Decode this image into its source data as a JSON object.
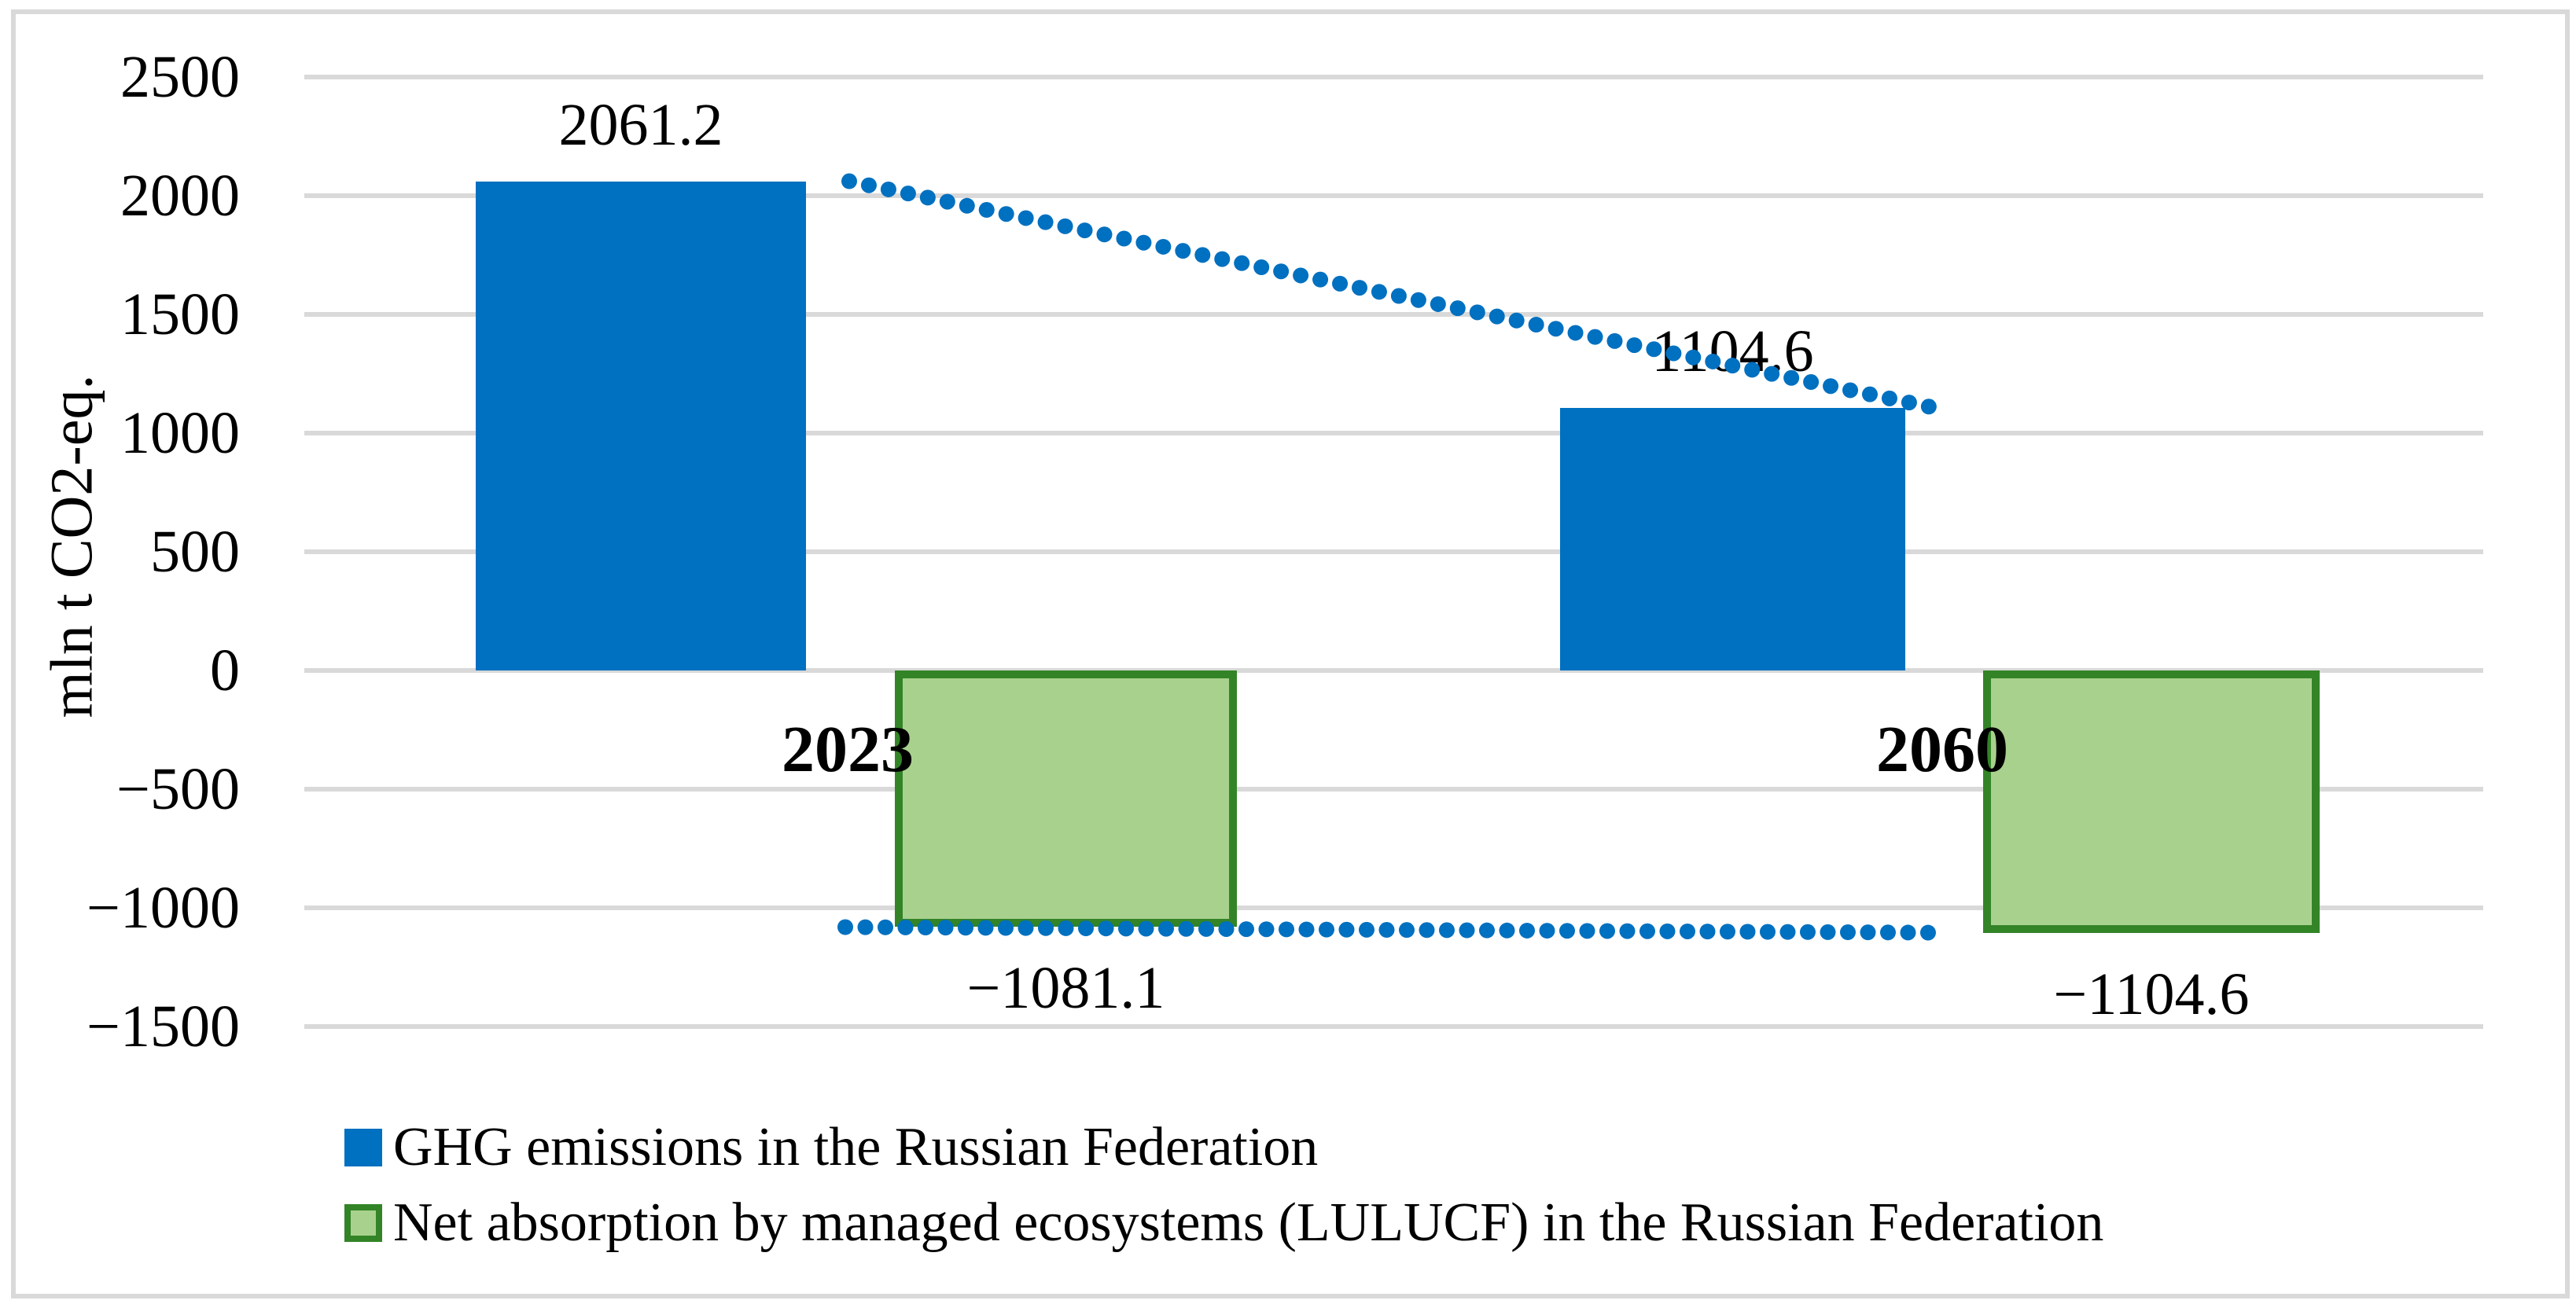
{
  "chart_data": {
    "type": "bar",
    "categories": [
      "2023",
      "2060"
    ],
    "series": [
      {
        "name": "GHG emissions in the Russian Federation",
        "values": [
          2061.2,
          1104.6
        ],
        "data_labels": [
          "2061.2",
          "1104.6"
        ],
        "color": "#0070C0"
      },
      {
        "name": "Net absorption by managed ecosystems (LULUCF) in the Russian Federation",
        "values": [
          -1081.1,
          -1104.6
        ],
        "data_labels": [
          "−1081.1",
          "−1104.6"
        ],
        "color": "#A9D18E",
        "border_color": "#338427"
      }
    ],
    "ylabel": "mln t CO2-eq.",
    "y_axis": {
      "min": -1500,
      "max": 2500,
      "step": 500,
      "tick_labels": [
        "2500",
        "2000",
        "1500",
        "1000",
        "500",
        "0",
        "−500",
        "−1000",
        "−1500"
      ]
    },
    "trendlines": [
      {
        "series": 0,
        "style": "dotted",
        "color": "#0070C0",
        "from_value": 2061.2,
        "to_value": 1104.6
      },
      {
        "series": 1,
        "style": "dotted",
        "color": "#0070C0",
        "from_value": -1081.1,
        "to_value": -1104.6
      }
    ],
    "grid": true,
    "gridline_color": "#D9D9D9",
    "legend_position": "bottom"
  },
  "legend": {
    "items": [
      {
        "label": "GHG emissions in the Russian Federation",
        "swatch": "blue-filled-square"
      },
      {
        "label": "Net absorption by managed ecosystems (LULUCF) in the Russian Federation",
        "swatch": "green-bordered-square"
      }
    ]
  }
}
